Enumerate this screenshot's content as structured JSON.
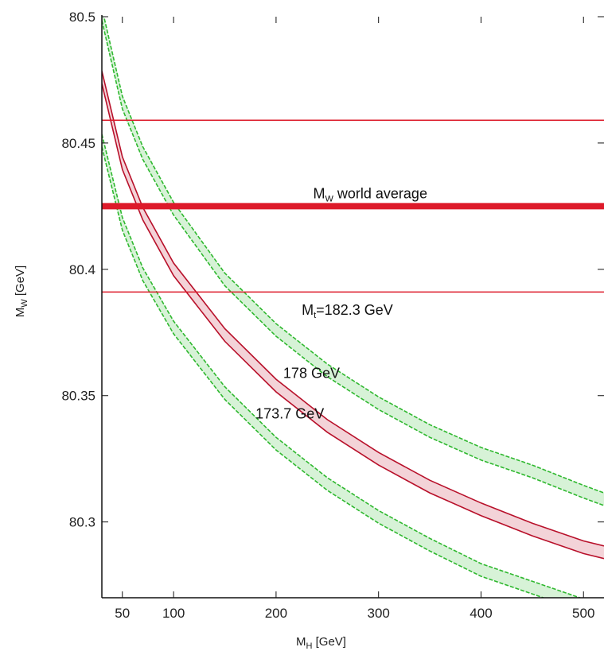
{
  "chart_data": {
    "type": "line",
    "title": "",
    "xlabel": {
      "main": "M",
      "sub": "H",
      "unit": " [GeV]"
    },
    "ylabel": {
      "main": "M",
      "sub": "W",
      "unit": " [GeV]"
    },
    "xlim": [
      30,
      520
    ],
    "ylim": [
      80.27,
      80.5
    ],
    "x_ticks": [
      50,
      100,
      200,
      300,
      400,
      500
    ],
    "x_tick_labels": [
      "50",
      "100",
      "200",
      "300",
      "400",
      "500"
    ],
    "y_ticks": [
      80.3,
      80.35,
      80.4,
      80.45,
      80.5
    ],
    "y_tick_labels": [
      "80.3",
      "80.35",
      "80.4",
      "80.45",
      "80.5"
    ],
    "grid": false,
    "colors": {
      "world_average": "#dd1a2a",
      "central_curve": "#b8102a",
      "mt_band": "#2fb82f"
    },
    "world_average": {
      "label": {
        "main": "M",
        "sub": "W",
        "rest": " world average"
      },
      "center": 80.425,
      "band": [
        80.391,
        80.459
      ]
    },
    "series": [
      {
        "id": "mt_high",
        "width": 0.0025,
        "x": [
          30,
          50,
          70,
          100,
          150,
          200,
          250,
          300,
          350,
          400,
          450,
          500,
          520
        ],
        "y": [
          80.501,
          80.466,
          80.446,
          80.424,
          80.396,
          80.376,
          80.36,
          80.347,
          80.336,
          80.327,
          80.32,
          80.312,
          80.309
        ]
      },
      {
        "id": "mt_central",
        "width": 0.0025,
        "x": [
          30,
          50,
          70,
          100,
          150,
          200,
          250,
          300,
          350,
          400,
          450,
          500,
          520
        ],
        "y": [
          80.476,
          80.442,
          80.422,
          80.4,
          80.374,
          80.354,
          80.338,
          80.325,
          80.314,
          80.305,
          80.297,
          80.29,
          80.288
        ]
      },
      {
        "id": "mt_low",
        "width": 0.0025,
        "x": [
          30,
          50,
          70,
          100,
          150,
          200,
          250,
          300,
          350,
          400,
          450,
          500,
          520
        ],
        "y": [
          80.451,
          80.418,
          80.398,
          80.377,
          80.351,
          80.331,
          80.315,
          80.302,
          80.291,
          80.281,
          80.274,
          80.267,
          80.264
        ]
      }
    ],
    "annotations": [
      {
        "main": "M",
        "sub": "t",
        "rest": "=182.3 GeV",
        "x": 225,
        "y": 80.382
      },
      {
        "main": "",
        "sub": "",
        "rest": "178 GeV",
        "x": 207,
        "y": 80.357
      },
      {
        "main": "",
        "sub": "",
        "rest": "173.7 GeV",
        "x": 180,
        "y": 80.341
      }
    ]
  }
}
